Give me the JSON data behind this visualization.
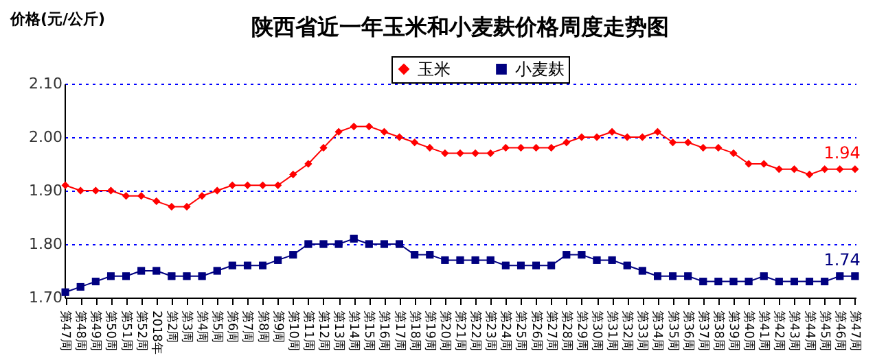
{
  "chart_data": {
    "type": "line",
    "title": "陕西省近一年玉米和小麦麸价格周度走势图",
    "ylabel": "价格(元/公斤)",
    "categories": [
      "第47周",
      "第48周",
      "第49周",
      "第50周",
      "第51周",
      "第52周",
      "2018年",
      "第2周",
      "第3周",
      "第4周",
      "第5周",
      "第6周",
      "第7周",
      "第8周",
      "第9周",
      "第10周",
      "第11周",
      "第12周",
      "第13周",
      "第14周",
      "第15周",
      "第16周",
      "第17周",
      "第18周",
      "第19周",
      "第20周",
      "第21周",
      "第22周",
      "第23周",
      "第24周",
      "第25周",
      "第26周",
      "第27周",
      "第28周",
      "第29周",
      "第30周",
      "第31周",
      "第32周",
      "第33周",
      "第34周",
      "第35周",
      "第36周",
      "第37周",
      "第38周",
      "第39周",
      "第40周",
      "第41周",
      "第42周",
      "第43周",
      "第44周",
      "第45周",
      "第46周",
      "第47周"
    ],
    "series": [
      {
        "name": "玉米",
        "color": "#ff0000",
        "marker": "diamond",
        "values": [
          1.91,
          1.9,
          1.9,
          1.9,
          1.89,
          1.89,
          1.88,
          1.87,
          1.87,
          1.89,
          1.9,
          1.91,
          1.91,
          1.91,
          1.91,
          1.93,
          1.95,
          1.98,
          2.01,
          2.02,
          2.02,
          2.01,
          2.0,
          1.99,
          1.98,
          1.97,
          1.97,
          1.97,
          1.97,
          1.98,
          1.98,
          1.98,
          1.98,
          1.99,
          2.0,
          2.0,
          2.01,
          2.0,
          2.0,
          2.01,
          1.99,
          1.99,
          1.98,
          1.98,
          1.97,
          1.95,
          1.95,
          1.94,
          1.94,
          1.93,
          1.94,
          1.94,
          1.94
        ],
        "value_labels": [
          null,
          null,
          null,
          null,
          null,
          null,
          null,
          null,
          null,
          null,
          null,
          null,
          null,
          null,
          null,
          null,
          null,
          null,
          null,
          null,
          null,
          null,
          null,
          null,
          null,
          null,
          null,
          null,
          null,
          null,
          null,
          null,
          null,
          null,
          null,
          null,
          null,
          null,
          null,
          null,
          null,
          null,
          null,
          null,
          null,
          null,
          null,
          null,
          null,
          null,
          null,
          null,
          "1.94"
        ]
      },
      {
        "name": "小麦麸",
        "color": "#000080",
        "marker": "square",
        "values": [
          1.71,
          1.72,
          1.73,
          1.74,
          1.74,
          1.75,
          1.75,
          1.74,
          1.74,
          1.74,
          1.75,
          1.76,
          1.76,
          1.76,
          1.77,
          1.78,
          1.8,
          1.8,
          1.8,
          1.81,
          1.8,
          1.8,
          1.8,
          1.78,
          1.78,
          1.77,
          1.77,
          1.77,
          1.77,
          1.76,
          1.76,
          1.76,
          1.76,
          1.78,
          1.78,
          1.77,
          1.77,
          1.76,
          1.75,
          1.74,
          1.74,
          1.74,
          1.73,
          1.73,
          1.73,
          1.73,
          1.74,
          1.73,
          1.73,
          1.73,
          1.73,
          1.74,
          1.74
        ],
        "value_labels": [
          null,
          null,
          null,
          null,
          null,
          null,
          null,
          null,
          null,
          null,
          null,
          null,
          null,
          null,
          null,
          null,
          null,
          null,
          null,
          null,
          null,
          null,
          null,
          null,
          null,
          null,
          null,
          null,
          null,
          null,
          null,
          null,
          null,
          null,
          null,
          null,
          null,
          null,
          null,
          null,
          null,
          null,
          null,
          null,
          null,
          null,
          null,
          null,
          null,
          null,
          null,
          null,
          "1.74"
        ]
      }
    ],
    "ylim": [
      1.7,
      2.1
    ],
    "yticks": [
      {
        "value": 1.7,
        "label": "1.70"
      },
      {
        "value": 1.8,
        "label": "1.80"
      },
      {
        "value": 1.9,
        "label": "1.90"
      },
      {
        "value": 2.0,
        "label": "2.00"
      },
      {
        "value": 2.1,
        "label": "2.10"
      }
    ],
    "grid": "y",
    "legend": "top",
    "line_style": "solid"
  }
}
